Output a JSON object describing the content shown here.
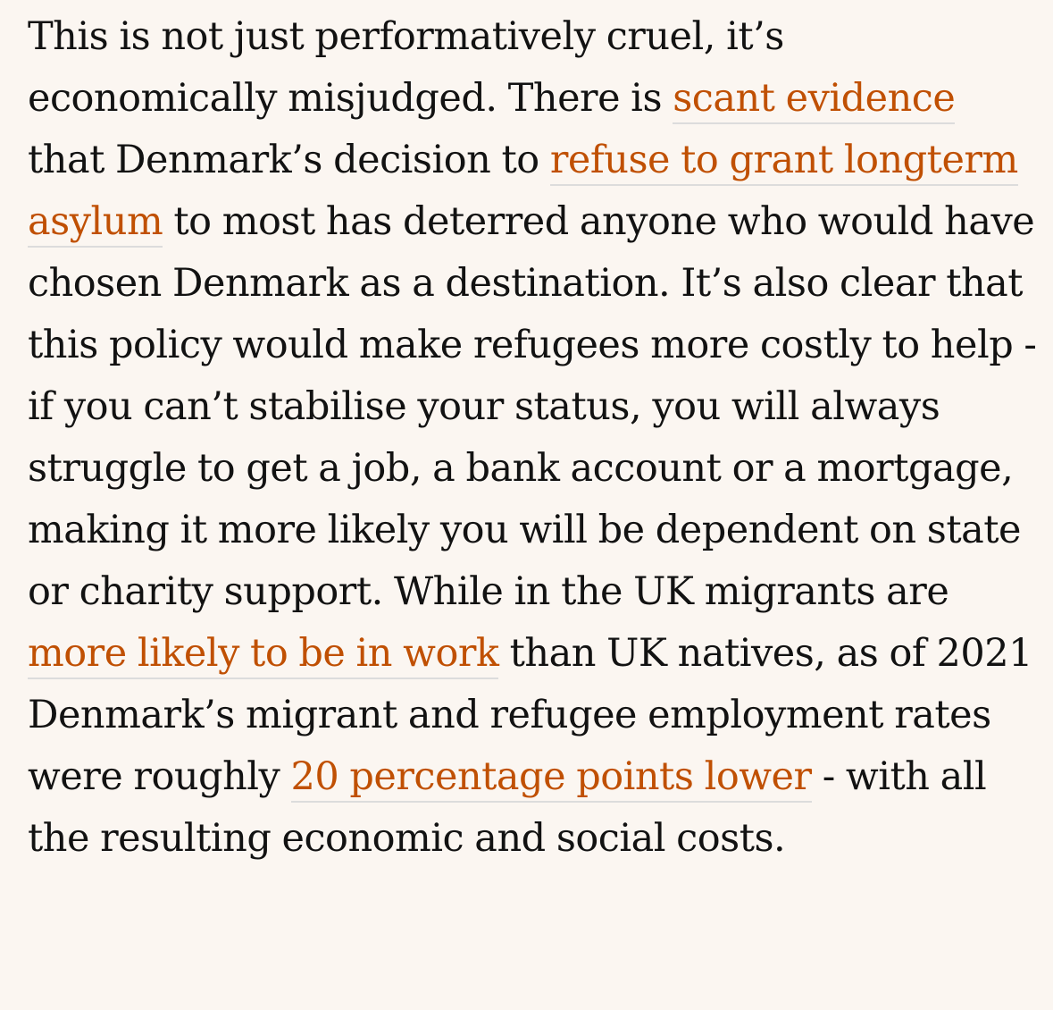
{
  "paragraph": {
    "seg_0": "This is not just performatively cruel, it’s economically misjudged. There is ",
    "link_1": "scant evidence",
    "seg_2": " that Denmark’s decision to ",
    "link_3": "refuse to grant longterm asylum",
    "seg_4": " to most has deterred anyone who would have chosen Denmark as a destination. It’s also clear that this policy would make refugees more costly to help - if you can’t stabilise your status, you will always struggle to get a job, a bank account or a mortgage, making it more likely you will be dependent on state or charity support. While in the UK migrants are ",
    "link_5": "more likely to be in work",
    "seg_6": " than UK natives, as of 2021 Denmark’s migrant and refugee employment rates were roughly ",
    "link_7": "20 percentage points lower",
    "seg_8": " - with all the resulting economic and social costs."
  },
  "colors": {
    "background": "#fbf6f1",
    "text": "#121212",
    "link": "#c05003",
    "link_underline": "#dcdcdc"
  }
}
